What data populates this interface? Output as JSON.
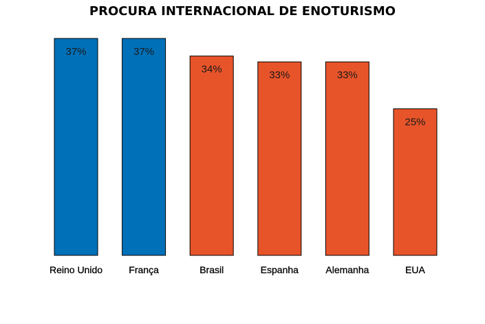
{
  "chart_data": {
    "type": "bar",
    "title": "PROCURA INTERNACIONAL DE ENOTURISMO",
    "categories": [
      "Reino Unido",
      "França",
      "Brasil",
      "Espanha",
      "Alemanha",
      "EUA"
    ],
    "values": [
      37,
      37,
      34,
      33,
      33,
      25
    ],
    "value_labels": [
      "37%",
      "37%",
      "34%",
      "33%",
      "33%",
      "25%"
    ],
    "unit": "%",
    "ylim": [
      0,
      37
    ],
    "grid": false,
    "legend": "none",
    "bar_colors": [
      "#0070b8",
      "#0070b8",
      "#e8542a",
      "#e8542a",
      "#e8542a",
      "#e8542a"
    ],
    "bar_border_color": "#000000"
  }
}
